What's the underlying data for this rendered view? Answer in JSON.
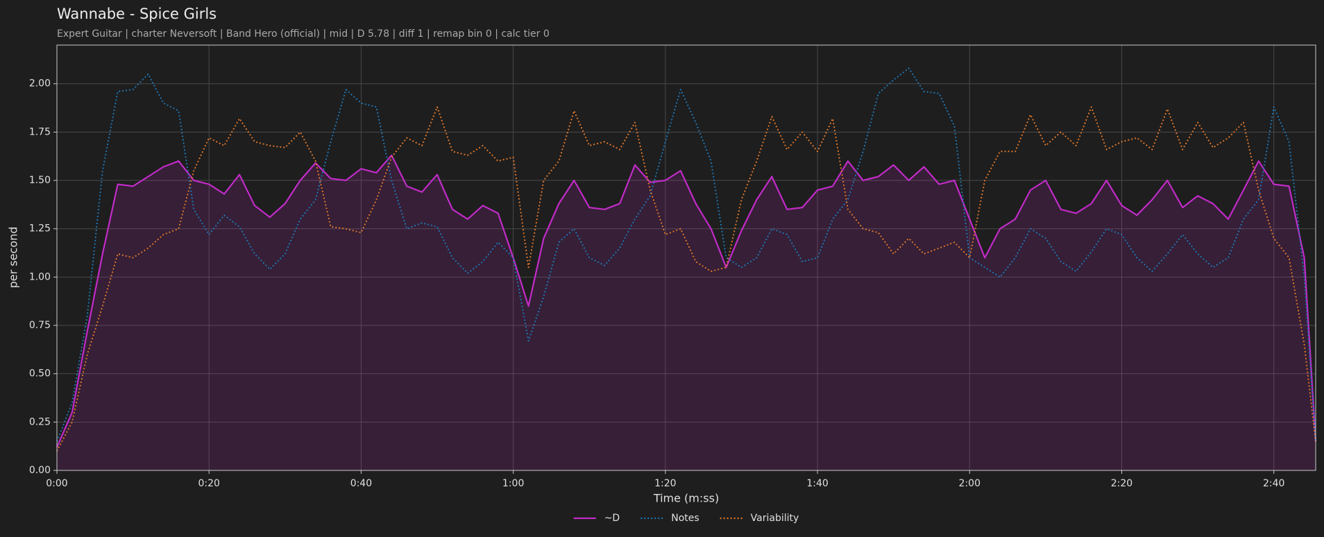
{
  "chart_data": {
    "type": "line",
    "title": "Wannabe - Spice Girls",
    "subtitle": "Expert Guitar  |  charter Neversoft  |  Band Hero (official)  |  mid  |  D 5.78  |  diff 1  |  remap bin 0  |  calc tier 0",
    "xlabel": "Time (m:ss)",
    "ylabel": "per second",
    "x": [
      0,
      2,
      4,
      6,
      8,
      10,
      12,
      14,
      16,
      18,
      20,
      22,
      24,
      26,
      28,
      30,
      32,
      34,
      36,
      38,
      40,
      42,
      44,
      46,
      48,
      50,
      52,
      54,
      56,
      58,
      60,
      62,
      64,
      66,
      68,
      70,
      72,
      74,
      76,
      78,
      80,
      82,
      84,
      86,
      88,
      90,
      92,
      94,
      96,
      98,
      100,
      102,
      104,
      106,
      108,
      110,
      112,
      114,
      116,
      118,
      120,
      122,
      124,
      126,
      128,
      130,
      132,
      134,
      136,
      138,
      140,
      142,
      144,
      146,
      148,
      150,
      152,
      154,
      156,
      158,
      160,
      162,
      164,
      165.5
    ],
    "series": [
      {
        "name": "~D",
        "color": "#c22bc8",
        "line_style": "solid",
        "fill": true,
        "values": [
          0.12,
          0.3,
          0.72,
          1.12,
          1.48,
          1.47,
          1.52,
          1.57,
          1.6,
          1.5,
          1.48,
          1.43,
          1.53,
          1.37,
          1.31,
          1.38,
          1.5,
          1.59,
          1.51,
          1.5,
          1.56,
          1.54,
          1.63,
          1.47,
          1.44,
          1.53,
          1.35,
          1.3,
          1.37,
          1.33,
          1.1,
          0.85,
          1.2,
          1.38,
          1.5,
          1.36,
          1.35,
          1.38,
          1.58,
          1.49,
          1.5,
          1.55,
          1.38,
          1.25,
          1.05,
          1.24,
          1.4,
          1.52,
          1.35,
          1.36,
          1.45,
          1.47,
          1.6,
          1.5,
          1.52,
          1.58,
          1.5,
          1.57,
          1.48,
          1.5,
          1.3,
          1.1,
          1.25,
          1.3,
          1.45,
          1.5,
          1.35,
          1.33,
          1.38,
          1.5,
          1.37,
          1.32,
          1.4,
          1.5,
          1.36,
          1.42,
          1.38,
          1.3,
          1.45,
          1.6,
          1.48,
          1.47,
          1.1,
          0.15
        ]
      },
      {
        "name": "Notes",
        "color": "#1f77b4",
        "line_style": "dotted",
        "fill": false,
        "values": [
          0.15,
          0.35,
          0.8,
          1.55,
          1.96,
          1.97,
          2.05,
          1.9,
          1.86,
          1.35,
          1.22,
          1.32,
          1.26,
          1.12,
          1.04,
          1.12,
          1.3,
          1.4,
          1.7,
          1.97,
          1.9,
          1.88,
          1.5,
          1.25,
          1.28,
          1.26,
          1.1,
          1.02,
          1.08,
          1.18,
          1.1,
          0.67,
          0.9,
          1.18,
          1.25,
          1.1,
          1.06,
          1.15,
          1.3,
          1.42,
          1.7,
          1.97,
          1.8,
          1.6,
          1.1,
          1.05,
          1.1,
          1.25,
          1.22,
          1.08,
          1.1,
          1.3,
          1.4,
          1.65,
          1.95,
          2.02,
          2.08,
          1.96,
          1.95,
          1.78,
          1.1,
          1.05,
          1.0,
          1.1,
          1.25,
          1.2,
          1.08,
          1.03,
          1.13,
          1.25,
          1.22,
          1.1,
          1.03,
          1.12,
          1.22,
          1.12,
          1.05,
          1.1,
          1.3,
          1.4,
          1.88,
          1.7,
          1.0,
          0.15
        ]
      },
      {
        "name": "Variability",
        "color": "#e0772a",
        "line_style": "dotted",
        "fill": false,
        "values": [
          0.1,
          0.25,
          0.6,
          0.85,
          1.12,
          1.1,
          1.15,
          1.22,
          1.25,
          1.55,
          1.72,
          1.68,
          1.82,
          1.7,
          1.68,
          1.67,
          1.75,
          1.6,
          1.26,
          1.25,
          1.23,
          1.4,
          1.62,
          1.72,
          1.68,
          1.88,
          1.65,
          1.63,
          1.68,
          1.6,
          1.62,
          1.05,
          1.5,
          1.6,
          1.86,
          1.68,
          1.7,
          1.66,
          1.8,
          1.45,
          1.22,
          1.25,
          1.08,
          1.03,
          1.05,
          1.4,
          1.6,
          1.83,
          1.66,
          1.75,
          1.65,
          1.82,
          1.35,
          1.25,
          1.23,
          1.12,
          1.2,
          1.12,
          1.15,
          1.18,
          1.1,
          1.5,
          1.65,
          1.65,
          1.84,
          1.68,
          1.75,
          1.68,
          1.88,
          1.66,
          1.7,
          1.72,
          1.66,
          1.87,
          1.66,
          1.8,
          1.67,
          1.72,
          1.8,
          1.45,
          1.2,
          1.1,
          0.65,
          0.15
        ]
      }
    ],
    "xlim": [
      0,
      165.5
    ],
    "ylim": [
      0,
      2.2
    ],
    "xticks": [
      {
        "value": 0,
        "label": "0:00"
      },
      {
        "value": 20,
        "label": "0:20"
      },
      {
        "value": 40,
        "label": "0:40"
      },
      {
        "value": 60,
        "label": "1:00"
      },
      {
        "value": 80,
        "label": "1:20"
      },
      {
        "value": 100,
        "label": "1:40"
      },
      {
        "value": 120,
        "label": "2:00"
      },
      {
        "value": 140,
        "label": "2:20"
      },
      {
        "value": 160,
        "label": "2:40"
      }
    ],
    "yticks": [
      {
        "value": 0,
        "label": "0.00"
      },
      {
        "value": 0.25,
        "label": "0.25"
      },
      {
        "value": 0.5,
        "label": "0.50"
      },
      {
        "value": 0.75,
        "label": "0.75"
      },
      {
        "value": 1,
        "label": "1.00"
      },
      {
        "value": 1.25,
        "label": "1.25"
      },
      {
        "value": 1.5,
        "label": "1.50"
      },
      {
        "value": 1.75,
        "label": "1.75"
      },
      {
        "value": 2,
        "label": "2.00"
      }
    ],
    "grid": true,
    "legend": "bottom"
  }
}
